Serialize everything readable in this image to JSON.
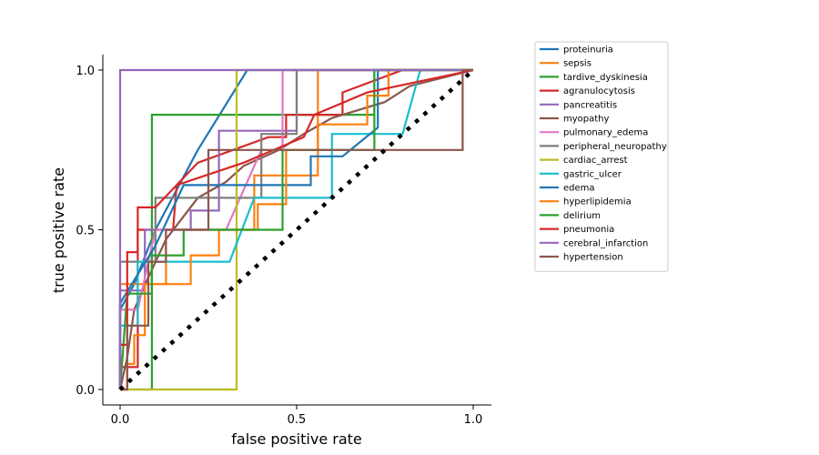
{
  "chart_data": {
    "type": "line",
    "title": "",
    "xlabel": "false positive rate",
    "ylabel": "true positive rate",
    "xlim": [
      -0.04,
      1.05
    ],
    "ylim": [
      -0.04,
      1.05
    ],
    "xticks": [
      0.0,
      0.5,
      1.0
    ],
    "yticks": [
      0.0,
      0.5,
      1.0
    ],
    "xtick_labels": [
      "0.0",
      "0.5",
      "1.0"
    ],
    "ytick_labels": [
      "0.0",
      "0.5",
      "1.0"
    ],
    "grid": false,
    "legend_position": "outside-right-top",
    "diagonal": {
      "x": [
        0,
        1
      ],
      "y": [
        0,
        1
      ],
      "style": "dotted",
      "color": "#000000"
    },
    "series": [
      {
        "name": "proteinuria",
        "color": "#1f77b4",
        "x": [
          0,
          0,
          0.04,
          0.1,
          0.22,
          0.36,
          0.6,
          1.0
        ],
        "y": [
          0,
          0.25,
          0.33,
          0.5,
          0.75,
          1.0,
          1.0,
          1.0
        ]
      },
      {
        "name": "sepsis",
        "color": "#ff7f0e",
        "x": [
          0,
          0,
          0.04,
          0.04,
          0.13,
          0.13,
          0.38,
          0.38,
          0.56,
          0.56,
          1.0
        ],
        "y": [
          0,
          0.33,
          0.33,
          0.33,
          0.33,
          0.5,
          0.5,
          0.67,
          0.67,
          1.0,
          1.0
        ]
      },
      {
        "name": "tardive_dyskinesia",
        "color": "#2ca02c",
        "x": [
          0,
          0.09,
          0.09,
          0.44,
          0.44,
          0.72,
          0.72,
          1.0
        ],
        "y": [
          0,
          0,
          0.86,
          0.86,
          0.86,
          0.86,
          1.0,
          1.0
        ]
      },
      {
        "name": "agranulocytosis",
        "color": "#d62728",
        "x": [
          0,
          0,
          0.05,
          0.05,
          0.15,
          0.16,
          0.22,
          0.42,
          0.47,
          0.47,
          0.63,
          0.63,
          0.8,
          1.0
        ],
        "y": [
          0,
          0.07,
          0.07,
          0.5,
          0.5,
          0.64,
          0.71,
          0.79,
          0.79,
          0.86,
          0.86,
          0.93,
          1.0,
          1.0
        ]
      },
      {
        "name": "pancreatitis",
        "color": "#9467bd",
        "x": [
          0,
          0,
          0.07,
          0.07,
          0.2,
          0.2,
          0.28,
          0.28,
          0.5,
          0.5,
          1.0
        ],
        "y": [
          0,
          0.31,
          0.31,
          0.5,
          0.5,
          0.56,
          0.56,
          0.81,
          0.81,
          1.0,
          1.0
        ]
      },
      {
        "name": "myopathy",
        "color": "#8c564b",
        "x": [
          0,
          0.02,
          0.04,
          0.08,
          0.13,
          0.22,
          0.3,
          0.35,
          0.45,
          0.52,
          0.6,
          0.75,
          0.82,
          1.0
        ],
        "y": [
          0,
          0.1,
          0.25,
          0.35,
          0.47,
          0.6,
          0.65,
          0.7,
          0.75,
          0.8,
          0.85,
          0.9,
          0.95,
          1.0
        ]
      },
      {
        "name": "pulmonary_edema",
        "color": "#e377c2",
        "x": [
          0,
          0,
          0.05,
          0.1,
          0.3,
          0.4,
          0.46,
          0.46,
          1.0
        ],
        "y": [
          0,
          0.25,
          0.25,
          0.5,
          0.5,
          0.75,
          0.75,
          1.0,
          1.0
        ]
      },
      {
        "name": "peripheral_neuropathy",
        "color": "#7f7f7f",
        "x": [
          0,
          0,
          0.04,
          0.04,
          0.1,
          0.1,
          0.4,
          0.4,
          0.5,
          0.5,
          1.0
        ],
        "y": [
          0,
          0.4,
          0.4,
          0.4,
          0.4,
          0.6,
          0.6,
          0.8,
          0.8,
          1.0,
          1.0
        ]
      },
      {
        "name": "cardiac_arrest",
        "color": "#bcbd22",
        "x": [
          0,
          0.33,
          0.33,
          1.0
        ],
        "y": [
          0,
          0,
          1.0,
          1.0
        ]
      },
      {
        "name": "gastric_ulcer",
        "color": "#17becf",
        "x": [
          0,
          0,
          0.05,
          0.05,
          0.1,
          0.1,
          0.31,
          0.38,
          0.6,
          0.6,
          0.8,
          0.85,
          1.0
        ],
        "y": [
          0,
          0.2,
          0.2,
          0.4,
          0.4,
          0.4,
          0.4,
          0.6,
          0.6,
          0.8,
          0.8,
          1.0,
          1.0
        ]
      },
      {
        "name": "edema",
        "color": "#1f77b4",
        "x": [
          0,
          0,
          0.1,
          0.18,
          0.54,
          0.54,
          0.63,
          0.73,
          0.73,
          1.0
        ],
        "y": [
          0,
          0.27,
          0.45,
          0.64,
          0.64,
          0.73,
          0.73,
          0.82,
          1.0,
          1.0
        ]
      },
      {
        "name": "hyperlipidemia",
        "color": "#ff7f0e",
        "x": [
          0,
          0.02,
          0.02,
          0.04,
          0.04,
          0.07,
          0.07,
          0.2,
          0.2,
          0.28,
          0.28,
          0.39,
          0.39,
          0.47,
          0.47,
          0.56,
          0.56,
          0.7,
          0.7,
          0.76,
          0.76,
          1.0
        ],
        "y": [
          0,
          0,
          0.08,
          0.08,
          0.17,
          0.17,
          0.33,
          0.33,
          0.42,
          0.42,
          0.5,
          0.5,
          0.58,
          0.58,
          0.75,
          0.75,
          0.83,
          0.83,
          0.92,
          0.92,
          1.0,
          1.0
        ]
      },
      {
        "name": "delirium",
        "color": "#2ca02c",
        "x": [
          0,
          0.02,
          0.02,
          0.09,
          0.09,
          0.18,
          0.18,
          0.46,
          0.46,
          0.72,
          0.72,
          1.0
        ],
        "y": [
          0,
          0.3,
          0.3,
          0.3,
          0.42,
          0.42,
          0.5,
          0.5,
          0.75,
          0.75,
          1.0,
          1.0
        ]
      },
      {
        "name": "pneumonia",
        "color": "#d62728",
        "x": [
          0,
          0,
          0.02,
          0.02,
          0.05,
          0.05,
          0.09,
          0.1,
          0.16,
          0.35,
          0.52,
          0.55,
          0.7,
          1.0
        ],
        "y": [
          0,
          0.14,
          0.14,
          0.43,
          0.43,
          0.57,
          0.57,
          0.57,
          0.64,
          0.71,
          0.79,
          0.86,
          0.93,
          1.0
        ]
      },
      {
        "name": "cerebral_infarction",
        "color": "#9467bd",
        "x": [
          0,
          0,
          1.0
        ],
        "y": [
          0,
          1.0,
          1.0
        ]
      },
      {
        "name": "hypertension",
        "color": "#8c564b",
        "x": [
          0,
          0.02,
          0.02,
          0.08,
          0.08,
          0.13,
          0.13,
          0.25,
          0.25,
          0.34,
          0.34,
          0.48,
          0.48,
          0.97,
          0.97,
          1.0
        ],
        "y": [
          0,
          0,
          0.2,
          0.2,
          0.4,
          0.4,
          0.5,
          0.5,
          0.75,
          0.75,
          0.75,
          0.75,
          0.75,
          0.75,
          1.0,
          1.0
        ]
      }
    ]
  }
}
